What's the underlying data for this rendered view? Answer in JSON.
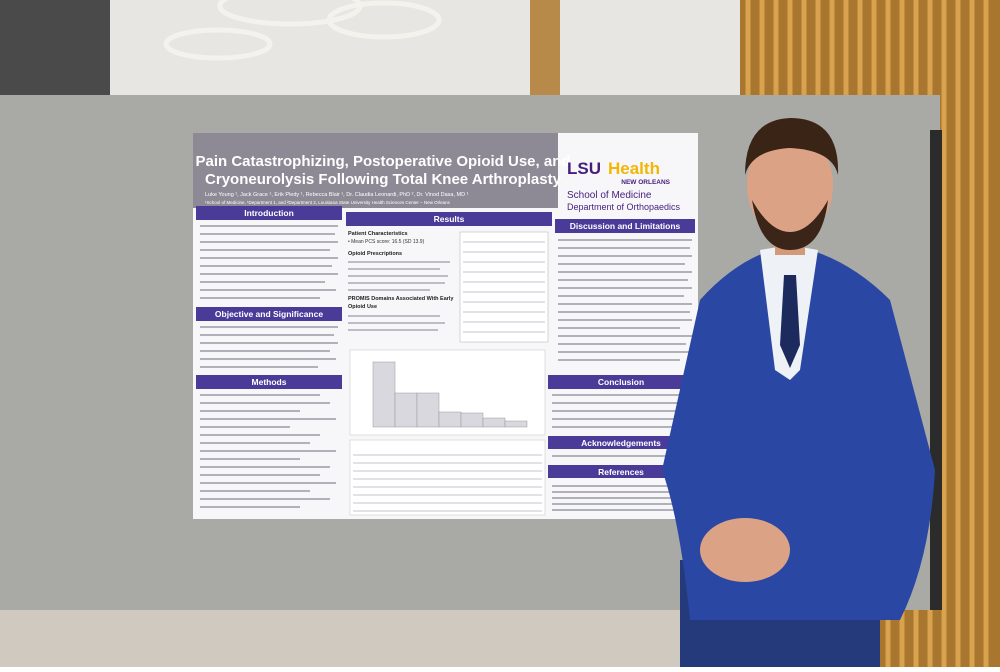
{
  "poster": {
    "title_line1": "Pain Catastrophizing, Postoperative Opioid Use, and",
    "title_line2": "Cryoneurolysis Following Total Knee Arthroplasty",
    "authors": "Luke Young ¹, Jack Grace ¹, Erik Pledy ¹, Rebecca Blair ¹, Dr. Claudia Leonardi, PhD ², Dr. Vinod Dasa, MD ¹",
    "affiliation": "¹School of Medicine, ¹Department 1, and ²Department 2, Louisiana State University Health Sciences Center – New Orleans",
    "logo": {
      "brand": "LSU",
      "brand2": "Health",
      "city": "NEW ORLEANS",
      "school": "School of Medicine",
      "department": "Department of Orthopaedics"
    },
    "sections": {
      "introduction": "Introduction",
      "objective": "Objective and Significance",
      "methods": "Methods",
      "results": "Results",
      "discussion": "Discussion and Limitations",
      "conclusion": "Conclusion",
      "acknowledgements": "Acknowledgements",
      "references": "References"
    },
    "results": {
      "sub1": "Patient Characteristics",
      "item1": "• Mean PCS score: 16.5 (SD 13.9)",
      "sub2": "Opioid Prescriptions",
      "sub3": "PROMIS Domains Associated With Early",
      "sub3b": "Opioid Use"
    }
  }
}
